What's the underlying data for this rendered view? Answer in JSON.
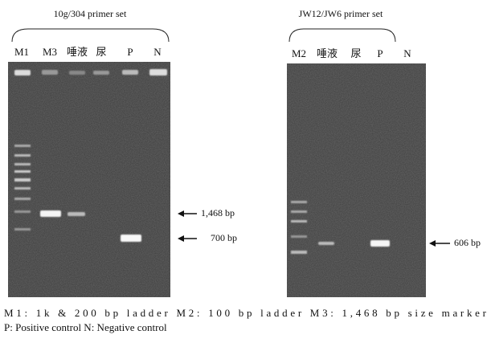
{
  "panels": [
    {
      "title": "10g/304 primer set",
      "lanes": [
        "M1",
        "M3",
        "唾液",
        "尿",
        "P",
        "N"
      ],
      "markers": [
        "1,468 bp",
        "700 bp"
      ]
    },
    {
      "title": "JW12/JW6 primer set",
      "lanes": [
        "M2",
        "唾液",
        "尿",
        "P",
        "N"
      ],
      "markers": [
        "606 bp"
      ]
    }
  ],
  "caption": {
    "lines": [
      "M1: 1k & 200 bp ladder  M2: 100 bp ladder  M3: 1,468 bp size marker",
      "P: Positive control  N: Negative control"
    ]
  }
}
